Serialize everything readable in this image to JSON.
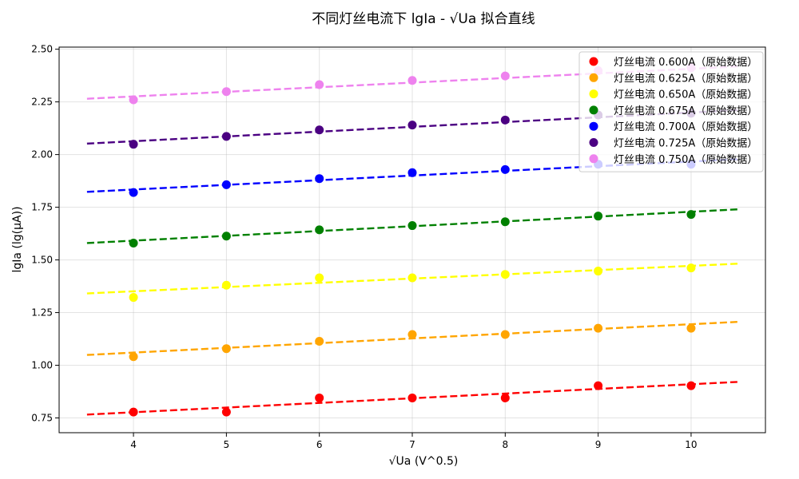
{
  "chart_data": {
    "type": "scatter",
    "title": "不同灯丝电流下 lgIa - √Ua 拟合直线",
    "xlabel": "√Ua (V^0.5)",
    "ylabel": "lgIa (lg(μA))",
    "xlim": [
      3.2,
      10.8
    ],
    "ylim": [
      0.68,
      2.51
    ],
    "xticks": [
      4,
      5,
      6,
      7,
      8,
      9,
      10
    ],
    "xtick_labels": [
      "4",
      "5",
      "6",
      "7",
      "8",
      "9",
      "10"
    ],
    "yticks": [
      0.75,
      1.0,
      1.25,
      1.5,
      1.75,
      2.0,
      2.25,
      2.5
    ],
    "ytick_labels": [
      "0.75",
      "1.00",
      "1.25",
      "1.50",
      "1.75",
      "2.00",
      "2.25",
      "2.50"
    ],
    "grid": true,
    "legend_position": "top-right",
    "x": [
      4,
      5,
      6,
      7,
      8,
      9,
      10
    ],
    "fit_x_range": [
      3.5,
      10.5
    ],
    "series": [
      {
        "name": "灯丝电流 0.600A（原始数据）",
        "color": "#ff0000",
        "values": [
          0.778,
          0.778,
          0.845,
          0.845,
          0.845,
          0.903,
          0.903
        ],
        "fit": [
          0.766,
          0.921
        ]
      },
      {
        "name": "灯丝电流 0.625A（原始数据）",
        "color": "#ffa500",
        "values": [
          1.041,
          1.079,
          1.114,
          1.146,
          1.146,
          1.176,
          1.176
        ],
        "fit": [
          1.049,
          1.206
        ]
      },
      {
        "name": "灯丝电流 0.650A（原始数据）",
        "color": "#ffff00",
        "values": [
          1.322,
          1.38,
          1.415,
          1.415,
          1.431,
          1.447,
          1.462
        ],
        "fit": [
          1.341,
          1.482
        ]
      },
      {
        "name": "灯丝电流 0.675A（原始数据）",
        "color": "#008000",
        "values": [
          1.58,
          1.613,
          1.643,
          1.663,
          1.681,
          1.708,
          1.716
        ],
        "fit": [
          1.58,
          1.74
        ]
      },
      {
        "name": "灯丝电流 0.700A（原始数据）",
        "color": "#0000ff",
        "values": [
          1.82,
          1.857,
          1.886,
          1.914,
          1.929,
          1.954,
          1.954
        ],
        "fit": [
          1.823,
          1.978
        ]
      },
      {
        "name": "灯丝电流 0.725A（原始数据）",
        "color": "#4b0082",
        "values": [
          2.049,
          2.086,
          2.117,
          2.14,
          2.164,
          2.188,
          2.196
        ],
        "fit": [
          2.052,
          2.211
        ]
      },
      {
        "name": "灯丝电流 0.750A（原始数据）",
        "color": "#ee82ee",
        "values": [
          2.26,
          2.299,
          2.332,
          2.352,
          2.373,
          2.398,
          2.412
        ],
        "fit": [
          2.265,
          2.418
        ]
      }
    ]
  }
}
